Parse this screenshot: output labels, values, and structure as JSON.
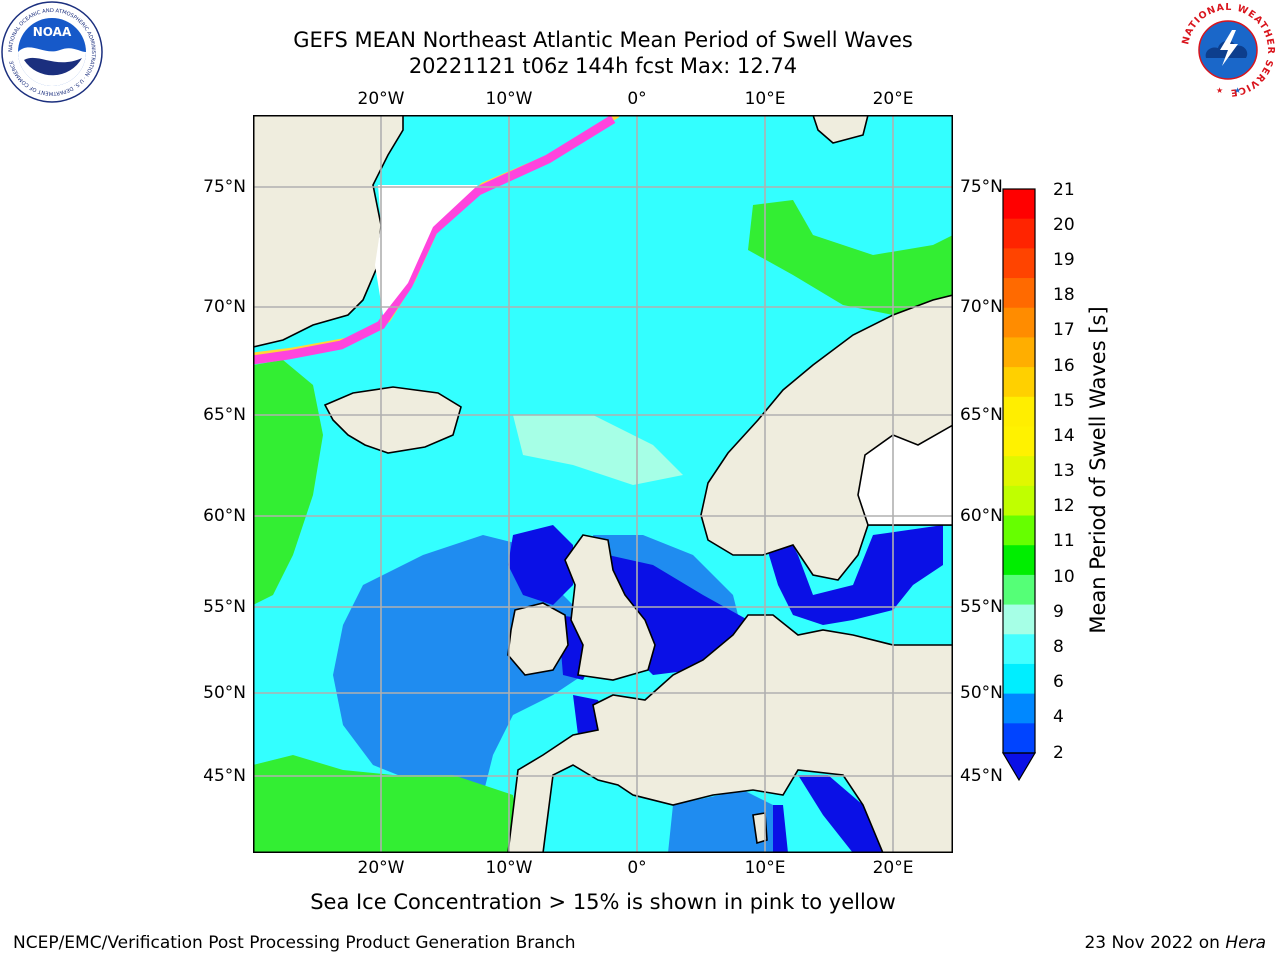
{
  "header": {
    "title_line1": "GEFS MEAN Northeast Atlantic Mean Period of Swell Waves",
    "title_line2": "20221121 t06z 144h fcst   Max: 12.74"
  },
  "map": {
    "lon_labels": [
      "20°W",
      "10°W",
      "0°",
      "10°E",
      "20°E"
    ],
    "lat_labels": [
      "75°N",
      "70°N",
      "65°N",
      "60°N",
      "55°N",
      "50°N",
      "45°N"
    ],
    "colors": {
      "land": "#efedde",
      "ocean_base": "#33ffff",
      "ice_pink": "#ff44dd",
      "ice_yellow": "#ffd838",
      "grid": "#b0b0b0"
    }
  },
  "colorbar": {
    "label": "Mean Period of Swell Waves [s]",
    "ticks": [
      "21",
      "20",
      "19",
      "18",
      "17",
      "16",
      "15",
      "14",
      "13",
      "12",
      "11",
      "10",
      "9",
      "8",
      "6",
      "4",
      "2"
    ],
    "colors": [
      "#ff0000",
      "#ff2400",
      "#ff4400",
      "#ff6a00",
      "#ff8c00",
      "#ffae00",
      "#ffd000",
      "#ffee00",
      "#fff200",
      "#e0f800",
      "#c0ff00",
      "#66ff00",
      "#00ee00",
      "#55ff77",
      "#a6ffe6",
      "#44ffff",
      "#00eeff",
      "#0088ff",
      "#0044ff"
    ]
  },
  "footer": {
    "note": "Sea Ice Concentration > 15% is shown in pink to yellow",
    "credit_left": "NCEP/EMC/Verification Post Processing Product Generation Branch",
    "credit_date": "23 Nov 2022 on ",
    "credit_host": "Hera"
  },
  "logos": {
    "left": {
      "icon": "noaa-logo-icon",
      "text": "NOAA",
      "ring_text": "NATIONAL OCEANIC AND ATMOSPHERIC ADMINISTRATION · U.S. DEPARTMENT OF COMMERCE"
    },
    "right": {
      "icon": "nws-logo-icon",
      "ring_text": "NATIONAL WEATHER SERVICE"
    }
  }
}
